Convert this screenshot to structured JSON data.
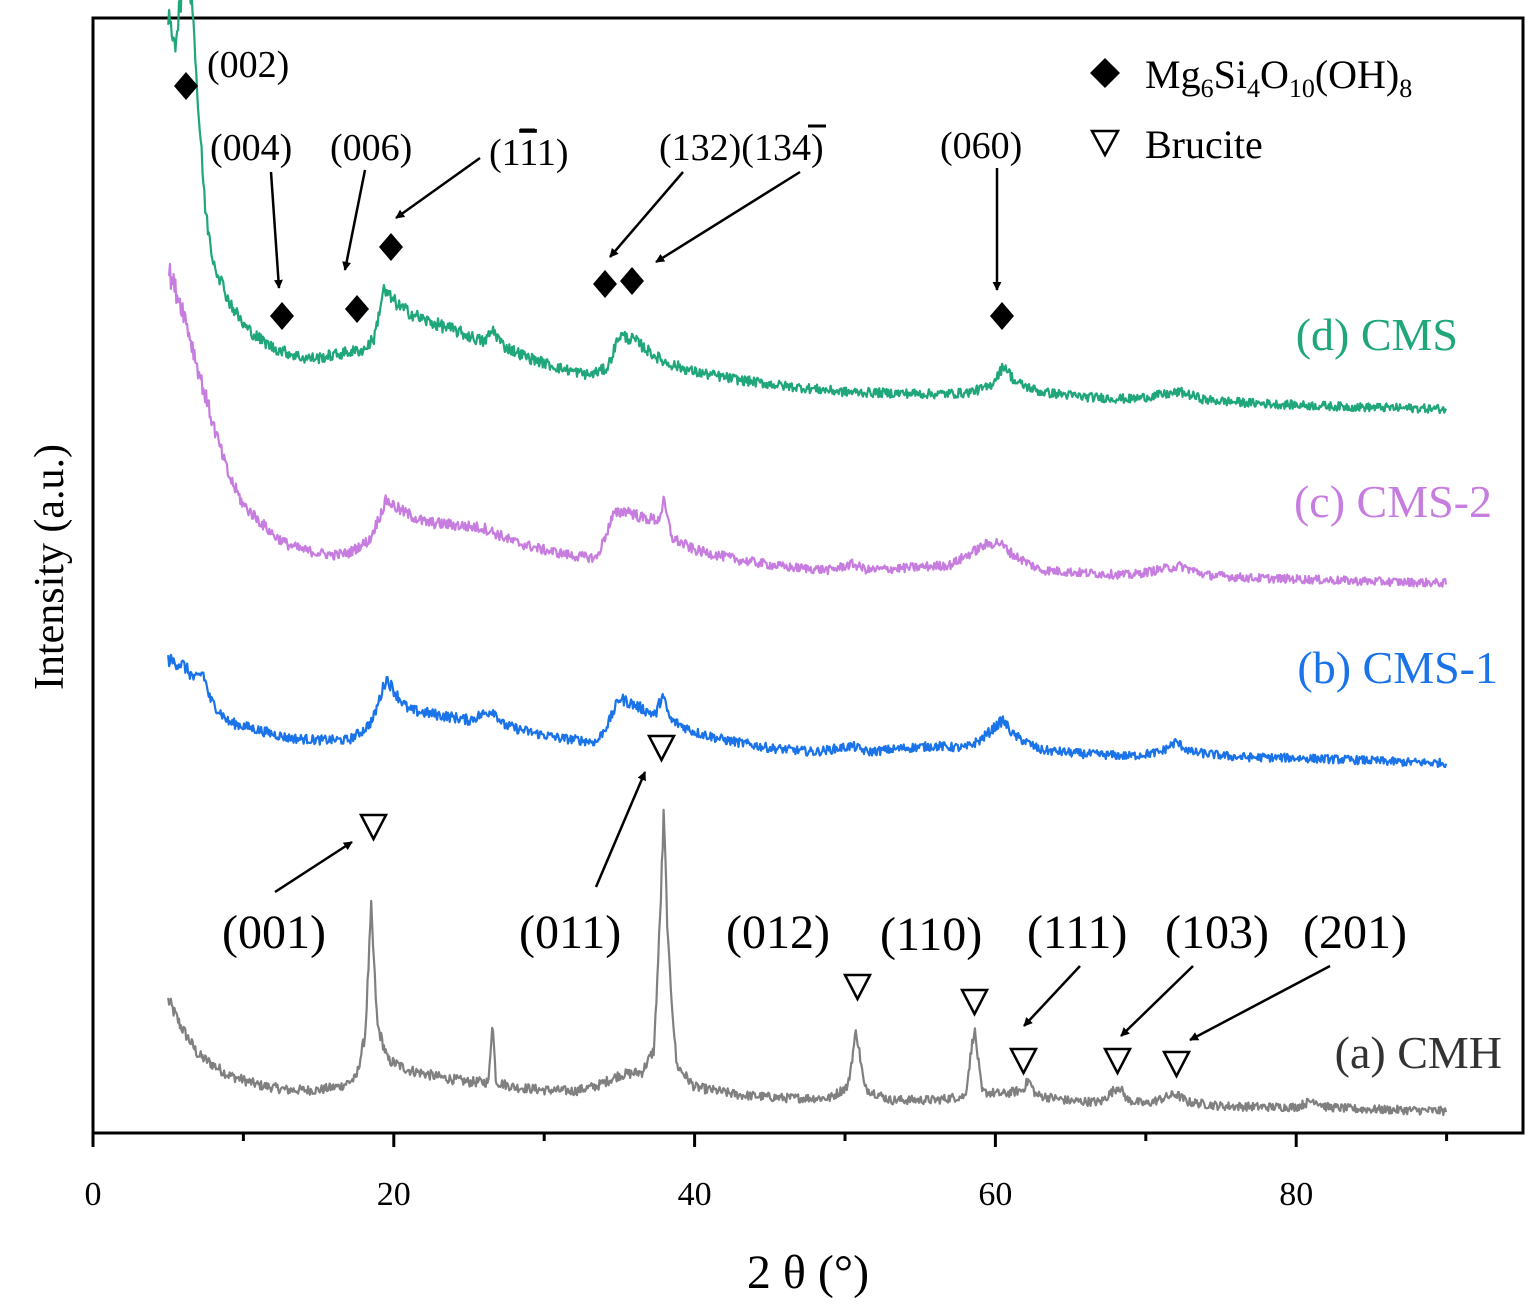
{
  "chart_data": {
    "type": "line",
    "title": "",
    "xlabel": "2 θ (°)",
    "ylabel": "Intensity (a.u.)",
    "xlim": [
      0,
      95
    ],
    "xticks": [
      "0",
      "20",
      "40",
      "60",
      "80"
    ],
    "yticks": [],
    "grid": false,
    "legend_position": "top-right",
    "legend": {
      "mg": {
        "base": "Mg",
        "s1": "6",
        "t2": "Si",
        "s2": "4",
        "t3": "O",
        "s3": "10",
        "t4": "(OH)",
        "s4": "8"
      },
      "brucite": "Brucite"
    },
    "series": [
      {
        "name": "(a) CMH",
        "color": "#808080",
        "offset": 20,
        "points": [
          [
            5,
            120
          ],
          [
            5.8,
            95
          ],
          [
            7,
            65
          ],
          [
            9,
            45
          ],
          [
            11,
            35
          ],
          [
            13,
            30
          ],
          [
            15,
            30
          ],
          [
            16.5,
            34
          ],
          [
            17.5,
            42
          ],
          [
            18.1,
            85
          ],
          [
            18.5,
            210
          ],
          [
            18.9,
            95
          ],
          [
            19.6,
            60
          ],
          [
            21,
            50
          ],
          [
            23,
            43
          ],
          [
            25,
            38
          ],
          [
            26.3,
            38
          ],
          [
            26.55,
            100
          ],
          [
            26.8,
            38
          ],
          [
            28,
            33
          ],
          [
            30,
            30
          ],
          [
            32,
            29
          ],
          [
            33.5,
            34
          ],
          [
            35,
            45
          ],
          [
            36.5,
            48
          ],
          [
            37.3,
            70
          ],
          [
            37.7,
            200
          ],
          [
            37.95,
            305
          ],
          [
            38.25,
            170
          ],
          [
            38.8,
            55
          ],
          [
            40,
            33
          ],
          [
            43,
            25
          ],
          [
            46,
            22
          ],
          [
            49,
            22
          ],
          [
            50.2,
            34
          ],
          [
            50.75,
            90
          ],
          [
            51.3,
            32
          ],
          [
            53,
            20
          ],
          [
            56,
            20
          ],
          [
            58,
            24
          ],
          [
            58.6,
            92
          ],
          [
            59.1,
            28
          ],
          [
            60.5,
            26
          ],
          [
            61.8,
            30
          ],
          [
            62.2,
            40
          ],
          [
            62.7,
            25
          ],
          [
            65,
            19
          ],
          [
            67,
            18
          ],
          [
            68.2,
            34
          ],
          [
            68.8,
            20
          ],
          [
            70,
            16
          ],
          [
            72,
            26
          ],
          [
            72.8,
            18
          ],
          [
            75,
            14
          ],
          [
            78,
            13
          ],
          [
            80,
            13
          ],
          [
            81.2,
            20
          ],
          [
            82,
            13
          ],
          [
            84,
            11
          ],
          [
            87,
            10
          ],
          [
            90,
            9
          ]
        ]
      },
      {
        "name": "(b) CMS-1",
        "color": "#1a73e8",
        "offset": 370,
        "points": [
          [
            5,
            110
          ],
          [
            6,
            105
          ],
          [
            6.8,
            90
          ],
          [
            7.3,
            98
          ],
          [
            7.8,
            70
          ],
          [
            9,
            48
          ],
          [
            11,
            40
          ],
          [
            13,
            32
          ],
          [
            15,
            30
          ],
          [
            17,
            30
          ],
          [
            18,
            40
          ],
          [
            18.6,
            50
          ],
          [
            19.5,
            92
          ],
          [
            20.2,
            75
          ],
          [
            21,
            60
          ],
          [
            23,
            55
          ],
          [
            25,
            50
          ],
          [
            26.6,
            60
          ],
          [
            27.3,
            45
          ],
          [
            29,
            38
          ],
          [
            31,
            32
          ],
          [
            33.5,
            28
          ],
          [
            34.3,
            48
          ],
          [
            35,
            72
          ],
          [
            36,
            65
          ],
          [
            37.4,
            55
          ],
          [
            37.85,
            75
          ],
          [
            38.4,
            50
          ],
          [
            40,
            38
          ],
          [
            42,
            30
          ],
          [
            45,
            22
          ],
          [
            48,
            18
          ],
          [
            50.5,
            24
          ],
          [
            51.5,
            18
          ],
          [
            54,
            22
          ],
          [
            56,
            24
          ],
          [
            58,
            22
          ],
          [
            59,
            30
          ],
          [
            60.5,
            50
          ],
          [
            61.2,
            35
          ],
          [
            63,
            20
          ],
          [
            66,
            16
          ],
          [
            69,
            14
          ],
          [
            71,
            18
          ],
          [
            72,
            28
          ],
          [
            73,
            18
          ],
          [
            76,
            13
          ],
          [
            80,
            12
          ],
          [
            84,
            10
          ],
          [
            87,
            8
          ],
          [
            90,
            7
          ]
        ]
      },
      {
        "name": "(c) CMS-2",
        "color": "#c77ddf",
        "offset": 550,
        "points": [
          [
            5,
            320
          ],
          [
            6,
            280
          ],
          [
            7,
            220
          ],
          [
            8,
            165
          ],
          [
            9,
            115
          ],
          [
            10,
            85
          ],
          [
            11,
            70
          ],
          [
            12,
            55
          ],
          [
            13,
            45
          ],
          [
            14,
            40
          ],
          [
            15,
            37
          ],
          [
            16,
            35
          ],
          [
            17,
            37
          ],
          [
            18.4,
            50
          ],
          [
            19.5,
            90
          ],
          [
            20.4,
            80
          ],
          [
            22,
            68
          ],
          [
            24,
            65
          ],
          [
            26,
            62
          ],
          [
            28,
            48
          ],
          [
            30,
            40
          ],
          [
            32,
            34
          ],
          [
            33.5,
            32
          ],
          [
            34.6,
            75
          ],
          [
            35.5,
            80
          ],
          [
            36.5,
            72
          ],
          [
            37.6,
            70
          ],
          [
            37.95,
            88
          ],
          [
            38.5,
            52
          ],
          [
            40,
            40
          ],
          [
            43,
            30
          ],
          [
            46,
            23
          ],
          [
            49,
            20
          ],
          [
            50.5,
            26
          ],
          [
            51.5,
            20
          ],
          [
            54,
            22
          ],
          [
            57,
            25
          ],
          [
            59.3,
            45
          ],
          [
            60.2,
            48
          ],
          [
            61.2,
            35
          ],
          [
            63,
            20
          ],
          [
            66,
            17
          ],
          [
            69,
            15
          ],
          [
            71.5,
            22
          ],
          [
            72.3,
            24
          ],
          [
            74,
            15
          ],
          [
            77,
            12
          ],
          [
            80,
            11
          ],
          [
            84,
            9
          ],
          [
            87,
            8
          ],
          [
            90,
            7
          ]
        ]
      },
      {
        "name": "(d) CMS",
        "color": "#1fa67a",
        "offset": 720,
        "points": [
          [
            5,
            400
          ],
          [
            5.5,
            380
          ],
          [
            5.9,
            430
          ],
          [
            6.2,
            462
          ],
          [
            6.6,
            420
          ],
          [
            7,
            310
          ],
          [
            7.5,
            205
          ],
          [
            8,
            160
          ],
          [
            9,
            120
          ],
          [
            10,
            95
          ],
          [
            11,
            82
          ],
          [
            12,
            72
          ],
          [
            13,
            67
          ],
          [
            14,
            62
          ],
          [
            15,
            62
          ],
          [
            16,
            65
          ],
          [
            17,
            68
          ],
          [
            18,
            70
          ],
          [
            18.7,
            82
          ],
          [
            19.3,
            130
          ],
          [
            19.8,
            122
          ],
          [
            20.5,
            112
          ],
          [
            22,
            100
          ],
          [
            24,
            90
          ],
          [
            26,
            78
          ],
          [
            26.6,
            90
          ],
          [
            27.3,
            74
          ],
          [
            29,
            62
          ],
          [
            31,
            52
          ],
          [
            33,
            45
          ],
          [
            34.2,
            52
          ],
          [
            35,
            85
          ],
          [
            36,
            80
          ],
          [
            37,
            68
          ],
          [
            38,
            58
          ],
          [
            40,
            48
          ],
          [
            43,
            40
          ],
          [
            46,
            34
          ],
          [
            50,
            28
          ],
          [
            53,
            27
          ],
          [
            56,
            26
          ],
          [
            58,
            27
          ],
          [
            59.6,
            33
          ],
          [
            60.6,
            55
          ],
          [
            61.3,
            38
          ],
          [
            63,
            28
          ],
          [
            66,
            23
          ],
          [
            69,
            21
          ],
          [
            71.5,
            26
          ],
          [
            72.3,
            28
          ],
          [
            74,
            20
          ],
          [
            77,
            17
          ],
          [
            80,
            15
          ],
          [
            84,
            13
          ],
          [
            87,
            12
          ],
          [
            90,
            11
          ]
        ]
      }
    ],
    "annotations": {
      "serpentine_labels": [
        {
          "text": "(002)"
        },
        {
          "text": "(004)"
        },
        {
          "text": "(006)"
        },
        {
          "text_pre": "(1",
          "text_bar1": "1",
          "text_post": "1)"
        },
        {
          "text_pre": "(132)(1",
          "text_bar1": "3",
          "text_post": "4)"
        },
        {
          "text": "(060)"
        }
      ],
      "serpentine_peaks_2theta": [
        6.2,
        12.4,
        17.6,
        19.8,
        34.2,
        35.9,
        60.5
      ],
      "brucite_labels": [
        "(001)",
        "(011)",
        "(012)",
        "(110)",
        "(111)",
        "(103)",
        "(201)"
      ],
      "brucite_peaks_2theta": [
        18.6,
        38.0,
        50.8,
        58.7,
        62.1,
        68.1,
        72.1
      ]
    }
  }
}
